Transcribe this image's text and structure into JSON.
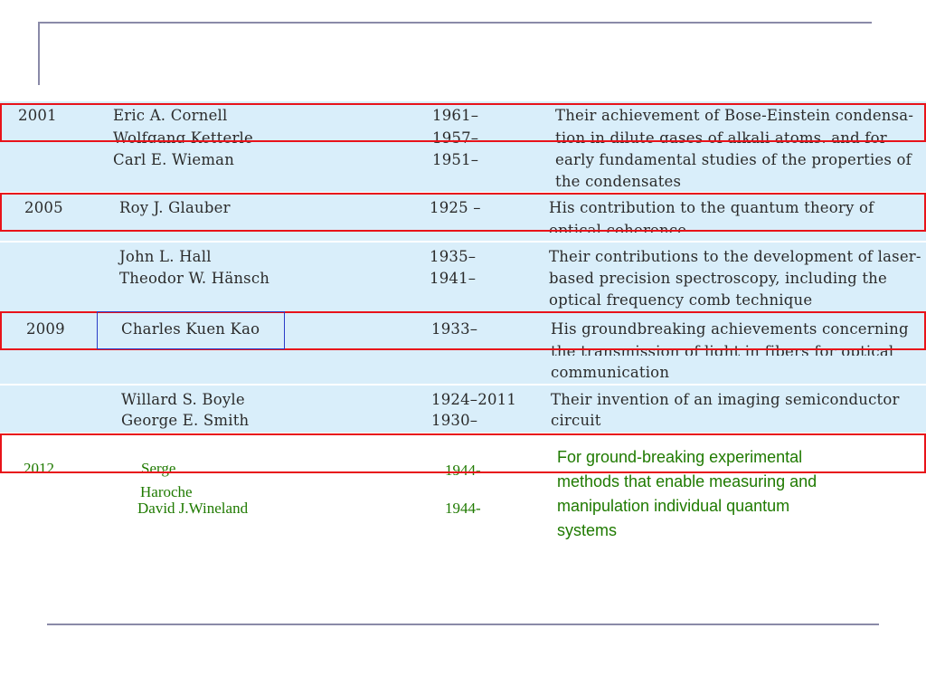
{
  "rows": [
    {
      "year": "2001",
      "names": [
        "Eric A. Cornell",
        "Wolfgang Ketterle",
        "Carl E. Wieman"
      ],
      "births": [
        "1961–",
        "1957–",
        "1951–"
      ],
      "desc": [
        "Their achievement of Bose-Einstein condensa-",
        "tion in dilute gases of alkali atoms, and for",
        "early fundamental studies of the properties of",
        "the condensates"
      ]
    },
    {
      "year": "2005",
      "names": [
        "Roy J. Glauber"
      ],
      "births": [
        "1925 –"
      ],
      "desc": [
        "His contribution to the quantum theory of",
        "optical coherence"
      ]
    },
    {
      "year": "",
      "names": [
        "John L. Hall",
        "Theodor W. Hänsch"
      ],
      "births": [
        "1935–",
        "1941–"
      ],
      "desc": [
        "Their contributions to the development of laser-",
        "based precision spectroscopy, including the",
        "optical frequency comb technique"
      ]
    },
    {
      "year": "2009",
      "names": [
        "Charles Kuen Kao"
      ],
      "births": [
        "1933–"
      ],
      "desc": [
        "His groundbreaking achievements concerning",
        "the  transmission of light in fibers for optical",
        "communication"
      ]
    },
    {
      "year": "",
      "names": [
        "Willard S. Boyle",
        "George E. Smith"
      ],
      "births": [
        "1924–2011",
        "1930–"
      ],
      "desc": [
        "Their invention of an imaging semiconductor",
        "circuit"
      ]
    }
  ],
  "row2012": {
    "year": "2012",
    "names": [
      "Serge",
      "Haroche",
      "David J.Wineland"
    ],
    "births": [
      "1944-",
      "1944-"
    ],
    "desc": [
      "For ground-breaking experimental",
      "methods that enable measuring and",
      "manipulation  individual quantum",
      "systems"
    ]
  }
}
